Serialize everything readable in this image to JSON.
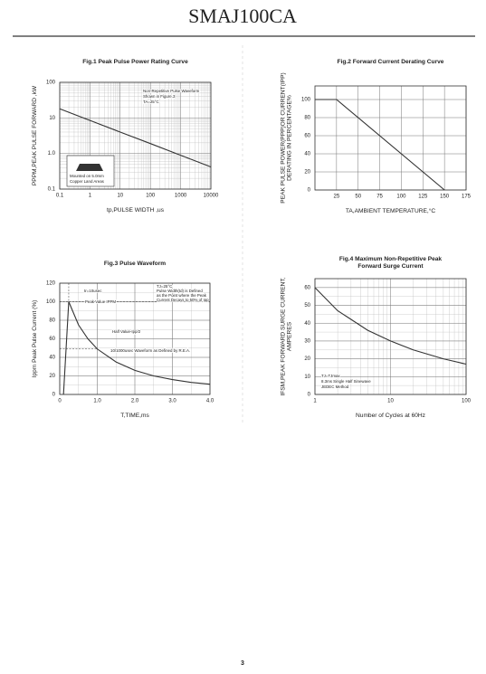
{
  "header": {
    "title": "SMAJ100CA"
  },
  "page_number": "3",
  "chart_data": [
    {
      "type": "line",
      "title": [
        "Fig.1 Peak Pulse Power Rating Curve"
      ],
      "xlabel": "tp,PULSE WIDTH ,us",
      "ylabel": [
        "PPPM,PEAK PULSE FORWARD ,kW"
      ],
      "xscale": "log",
      "yscale": "log",
      "x": [
        0.1,
        1,
        10,
        100,
        1000,
        10000
      ],
      "values": [
        18,
        8.5,
        4.0,
        1.9,
        0.89,
        0.42
      ],
      "color": "#333333",
      "xlim": [
        0.1,
        10000
      ],
      "ylim": [
        0.1,
        100
      ],
      "xticks": [
        0.1,
        1,
        10,
        100,
        1000,
        10000
      ],
      "yticks": [
        0.1,
        {
          "value": 1,
          "label": "1.0"
        },
        10,
        100
      ],
      "grid": true,
      "minor_grid": true,
      "annotations": [
        "Non-Repetitive Pulse Waveform",
        "Shown in Figure.3",
        "TA=25°C",
        "Mounted on 5.0mm",
        "Copper Land Areas"
      ]
    },
    {
      "type": "line",
      "title": [
        "Fig.2 Forward Current Derating Curve"
      ],
      "xlabel": "TA,AMBIENT TEMPERATURE,°C",
      "ylabel": [
        "PEAK PULSE POWER(PPP)OR CURRENT(IPP)",
        "DERATING IN PERCENTAGE%"
      ],
      "x": [
        0,
        25,
        150
      ],
      "values": [
        100,
        100,
        0
      ],
      "color": "#333333",
      "xlim": [
        0,
        175
      ],
      "ylim": [
        0,
        115
      ],
      "xticks": [
        25,
        50,
        75,
        100,
        125,
        150,
        175
      ],
      "yticks": [
        0,
        20,
        40,
        60,
        80,
        100
      ],
      "grid": true,
      "minor_grid": false,
      "annotations": []
    },
    {
      "type": "line",
      "title": [
        "Fig.3 Pulse Waveform"
      ],
      "xlabel": "T,TIME,ms",
      "ylabel": [
        "Ippm Peak Pulse Current (%)"
      ],
      "x": [
        0.1,
        0.24,
        0.5,
        0.75,
        1.0,
        1.5,
        2.0,
        2.5,
        3.0,
        3.5,
        4.0
      ],
      "values": [
        0,
        100,
        75,
        60,
        49,
        35,
        26,
        20,
        16,
        13,
        11
      ],
      "color": "#333333",
      "xlim": [
        0,
        4.0
      ],
      "ylim": [
        0,
        120
      ],
      "xticks": [
        0,
        {
          "value": 1,
          "label": "1.0"
        },
        {
          "value": 2,
          "label": "2.0"
        },
        {
          "value": 3,
          "label": "3.0"
        },
        {
          "value": 4,
          "label": "4.0"
        }
      ],
      "yticks": [
        0,
        20,
        40,
        60,
        80,
        100,
        120
      ],
      "grid": true,
      "minor_grid": true,
      "annotations": [
        "tr=10usec",
        "Peak Value IPPM",
        "Half Value-Ipp/2",
        "10/1000usec Waveform as Defined by R.E.A.",
        "TJ=25°C",
        "Pulse Width(td) is Defined",
        "as the Point where the Peak",
        "Current Decays to 50% of Ipp"
      ]
    },
    {
      "type": "line",
      "title": [
        "Fig.4 Maximum Non-Repetitive Peak",
        "Forward Surge Current"
      ],
      "xlabel": "Number of Cycles at 60Hz",
      "ylabel": [
        "IFSM,PEAK FORWARD SURGE CURRENT,",
        "AMPERES"
      ],
      "xscale": "log",
      "x": [
        1,
        2,
        5,
        10,
        20,
        50,
        100
      ],
      "values": [
        60,
        47,
        36,
        30,
        25,
        20,
        17
      ],
      "color": "#333333",
      "xlim": [
        1,
        100
      ],
      "ylim": [
        0,
        65
      ],
      "xticks": [
        1,
        10,
        100
      ],
      "yticks": [
        0,
        10,
        20,
        30,
        40,
        50,
        60
      ],
      "grid": true,
      "minor_grid": true,
      "annotations": [
        "TJ=TJmax",
        "8.3ms Single Half Sinewave",
        "JEDEC Method"
      ]
    }
  ]
}
